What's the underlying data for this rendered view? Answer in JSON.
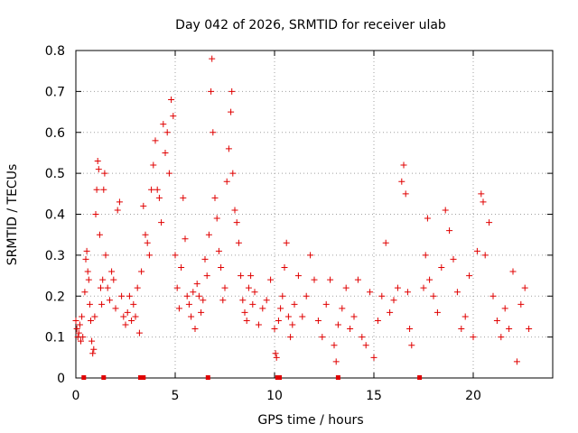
{
  "chart_data": {
    "type": "scatter",
    "title": "Day 042 of 2026, SRMTID for receiver ulab",
    "xlabel": "GPS time / hours",
    "ylabel": "SRMTID / TECUs",
    "xlim": [
      0,
      24
    ],
    "ylim": [
      0,
      0.8
    ],
    "x_ticks": [
      0,
      5,
      10,
      15,
      20
    ],
    "y_ticks": [
      0,
      0.1,
      0.2,
      0.3,
      0.4,
      0.5,
      0.6,
      0.7,
      0.8
    ],
    "x_tick_labels": [
      "0",
      "5",
      "10",
      "15",
      "20"
    ],
    "y_tick_labels": [
      "0",
      "0.1",
      "0.2",
      "0.3",
      "0.4",
      "0.5",
      "0.6",
      "0.7",
      "0.8"
    ],
    "grid": true,
    "marker": "+",
    "color": "#e00000",
    "series": [
      {
        "name": "SRMTID",
        "points": [
          [
            0.0,
            0.14
          ],
          [
            0.05,
            0.12
          ],
          [
            0.1,
            0.1
          ],
          [
            0.15,
            0.11
          ],
          [
            0.2,
            0.13
          ],
          [
            0.25,
            0.09
          ],
          [
            0.3,
            0.15
          ],
          [
            0.35,
            0.1
          ],
          [
            0.45,
            0.21
          ],
          [
            0.5,
            0.29
          ],
          [
            0.55,
            0.31
          ],
          [
            0.6,
            0.26
          ],
          [
            0.65,
            0.24
          ],
          [
            0.7,
            0.18
          ],
          [
            0.75,
            0.14
          ],
          [
            0.8,
            0.09
          ],
          [
            0.85,
            0.06
          ],
          [
            0.9,
            0.07
          ],
          [
            0.95,
            0.15
          ],
          [
            1.0,
            0.4
          ],
          [
            1.05,
            0.46
          ],
          [
            1.1,
            0.53
          ],
          [
            1.15,
            0.51
          ],
          [
            1.2,
            0.35
          ],
          [
            1.25,
            0.22
          ],
          [
            1.3,
            0.18
          ],
          [
            1.35,
            0.24
          ],
          [
            1.4,
            0.46
          ],
          [
            1.45,
            0.5
          ],
          [
            1.5,
            0.3
          ],
          [
            1.6,
            0.22
          ],
          [
            1.7,
            0.19
          ],
          [
            1.8,
            0.26
          ],
          [
            1.9,
            0.24
          ],
          [
            2.0,
            0.17
          ],
          [
            2.1,
            0.41
          ],
          [
            2.2,
            0.43
          ],
          [
            2.3,
            0.2
          ],
          [
            2.4,
            0.15
          ],
          [
            2.5,
            0.13
          ],
          [
            2.6,
            0.16
          ],
          [
            2.7,
            0.2
          ],
          [
            2.8,
            0.14
          ],
          [
            2.9,
            0.18
          ],
          [
            3.0,
            0.15
          ],
          [
            3.1,
            0.22
          ],
          [
            3.2,
            0.11
          ],
          [
            3.3,
            0.26
          ],
          [
            3.4,
            0.42
          ],
          [
            3.5,
            0.35
          ],
          [
            3.6,
            0.33
          ],
          [
            3.7,
            0.3
          ],
          [
            3.8,
            0.46
          ],
          [
            3.9,
            0.52
          ],
          [
            4.0,
            0.58
          ],
          [
            4.1,
            0.46
          ],
          [
            4.2,
            0.44
          ],
          [
            4.3,
            0.38
          ],
          [
            4.4,
            0.62
          ],
          [
            4.5,
            0.55
          ],
          [
            4.6,
            0.6
          ],
          [
            4.7,
            0.5
          ],
          [
            4.8,
            0.68
          ],
          [
            4.9,
            0.64
          ],
          [
            5.0,
            0.3
          ],
          [
            5.1,
            0.22
          ],
          [
            5.2,
            0.17
          ],
          [
            5.3,
            0.27
          ],
          [
            5.4,
            0.44
          ],
          [
            5.5,
            0.34
          ],
          [
            5.6,
            0.2
          ],
          [
            5.7,
            0.18
          ],
          [
            5.8,
            0.15
          ],
          [
            5.9,
            0.21
          ],
          [
            6.0,
            0.12
          ],
          [
            6.1,
            0.23
          ],
          [
            6.2,
            0.2
          ],
          [
            6.3,
            0.16
          ],
          [
            6.4,
            0.19
          ],
          [
            6.5,
            0.29
          ],
          [
            6.6,
            0.25
          ],
          [
            6.7,
            0.35
          ],
          [
            6.8,
            0.7
          ],
          [
            6.85,
            0.78
          ],
          [
            6.9,
            0.6
          ],
          [
            7.0,
            0.44
          ],
          [
            7.1,
            0.39
          ],
          [
            7.2,
            0.31
          ],
          [
            7.3,
            0.27
          ],
          [
            7.4,
            0.19
          ],
          [
            7.5,
            0.22
          ],
          [
            7.6,
            0.48
          ],
          [
            7.7,
            0.56
          ],
          [
            7.8,
            0.65
          ],
          [
            7.85,
            0.7
          ],
          [
            7.9,
            0.5
          ],
          [
            8.0,
            0.41
          ],
          [
            8.1,
            0.38
          ],
          [
            8.2,
            0.33
          ],
          [
            8.3,
            0.25
          ],
          [
            8.4,
            0.19
          ],
          [
            8.5,
            0.16
          ],
          [
            8.6,
            0.14
          ],
          [
            8.7,
            0.22
          ],
          [
            8.8,
            0.25
          ],
          [
            8.9,
            0.18
          ],
          [
            9.0,
            0.21
          ],
          [
            9.2,
            0.13
          ],
          [
            9.4,
            0.17
          ],
          [
            9.6,
            0.19
          ],
          [
            9.8,
            0.24
          ],
          [
            10.0,
            0.12
          ],
          [
            10.05,
            0.06
          ],
          [
            10.1,
            0.05
          ],
          [
            10.2,
            0.14
          ],
          [
            10.3,
            0.17
          ],
          [
            10.4,
            0.2
          ],
          [
            10.5,
            0.27
          ],
          [
            10.6,
            0.33
          ],
          [
            10.7,
            0.15
          ],
          [
            10.8,
            0.1
          ],
          [
            10.9,
            0.13
          ],
          [
            11.0,
            0.18
          ],
          [
            11.2,
            0.25
          ],
          [
            11.4,
            0.15
          ],
          [
            11.6,
            0.2
          ],
          [
            11.8,
            0.3
          ],
          [
            12.0,
            0.24
          ],
          [
            12.2,
            0.14
          ],
          [
            12.4,
            0.1
          ],
          [
            12.6,
            0.18
          ],
          [
            12.8,
            0.24
          ],
          [
            13.0,
            0.08
          ],
          [
            13.1,
            0.04
          ],
          [
            13.2,
            0.13
          ],
          [
            13.4,
            0.17
          ],
          [
            13.6,
            0.22
          ],
          [
            13.8,
            0.12
          ],
          [
            14.0,
            0.15
          ],
          [
            14.2,
            0.24
          ],
          [
            14.4,
            0.1
          ],
          [
            14.6,
            0.08
          ],
          [
            14.8,
            0.21
          ],
          [
            15.0,
            0.05
          ],
          [
            15.2,
            0.14
          ],
          [
            15.4,
            0.2
          ],
          [
            15.6,
            0.33
          ],
          [
            15.8,
            0.16
          ],
          [
            16.0,
            0.19
          ],
          [
            16.2,
            0.22
          ],
          [
            16.4,
            0.48
          ],
          [
            16.5,
            0.52
          ],
          [
            16.6,
            0.45
          ],
          [
            16.7,
            0.21
          ],
          [
            16.8,
            0.12
          ],
          [
            16.9,
            0.08
          ],
          [
            17.5,
            0.22
          ],
          [
            17.6,
            0.3
          ],
          [
            17.7,
            0.39
          ],
          [
            17.8,
            0.24
          ],
          [
            18.0,
            0.2
          ],
          [
            18.2,
            0.16
          ],
          [
            18.4,
            0.27
          ],
          [
            18.6,
            0.41
          ],
          [
            18.8,
            0.36
          ],
          [
            19.0,
            0.29
          ],
          [
            19.2,
            0.21
          ],
          [
            19.4,
            0.12
          ],
          [
            19.6,
            0.15
          ],
          [
            19.8,
            0.25
          ],
          [
            20.0,
            0.1
          ],
          [
            20.2,
            0.31
          ],
          [
            20.4,
            0.45
          ],
          [
            20.5,
            0.43
          ],
          [
            20.6,
            0.3
          ],
          [
            20.8,
            0.38
          ],
          [
            21.0,
            0.2
          ],
          [
            21.2,
            0.14
          ],
          [
            21.4,
            0.1
          ],
          [
            21.6,
            0.17
          ],
          [
            21.8,
            0.12
          ],
          [
            22.0,
            0.26
          ],
          [
            22.2,
            0.04
          ],
          [
            22.4,
            0.18
          ],
          [
            22.6,
            0.22
          ],
          [
            22.8,
            0.12
          ]
        ]
      }
    ],
    "gap_markers_x": [
      0.4,
      1.4,
      3.25,
      3.4,
      6.65,
      10.15,
      10.25,
      13.2,
      17.3
    ]
  }
}
